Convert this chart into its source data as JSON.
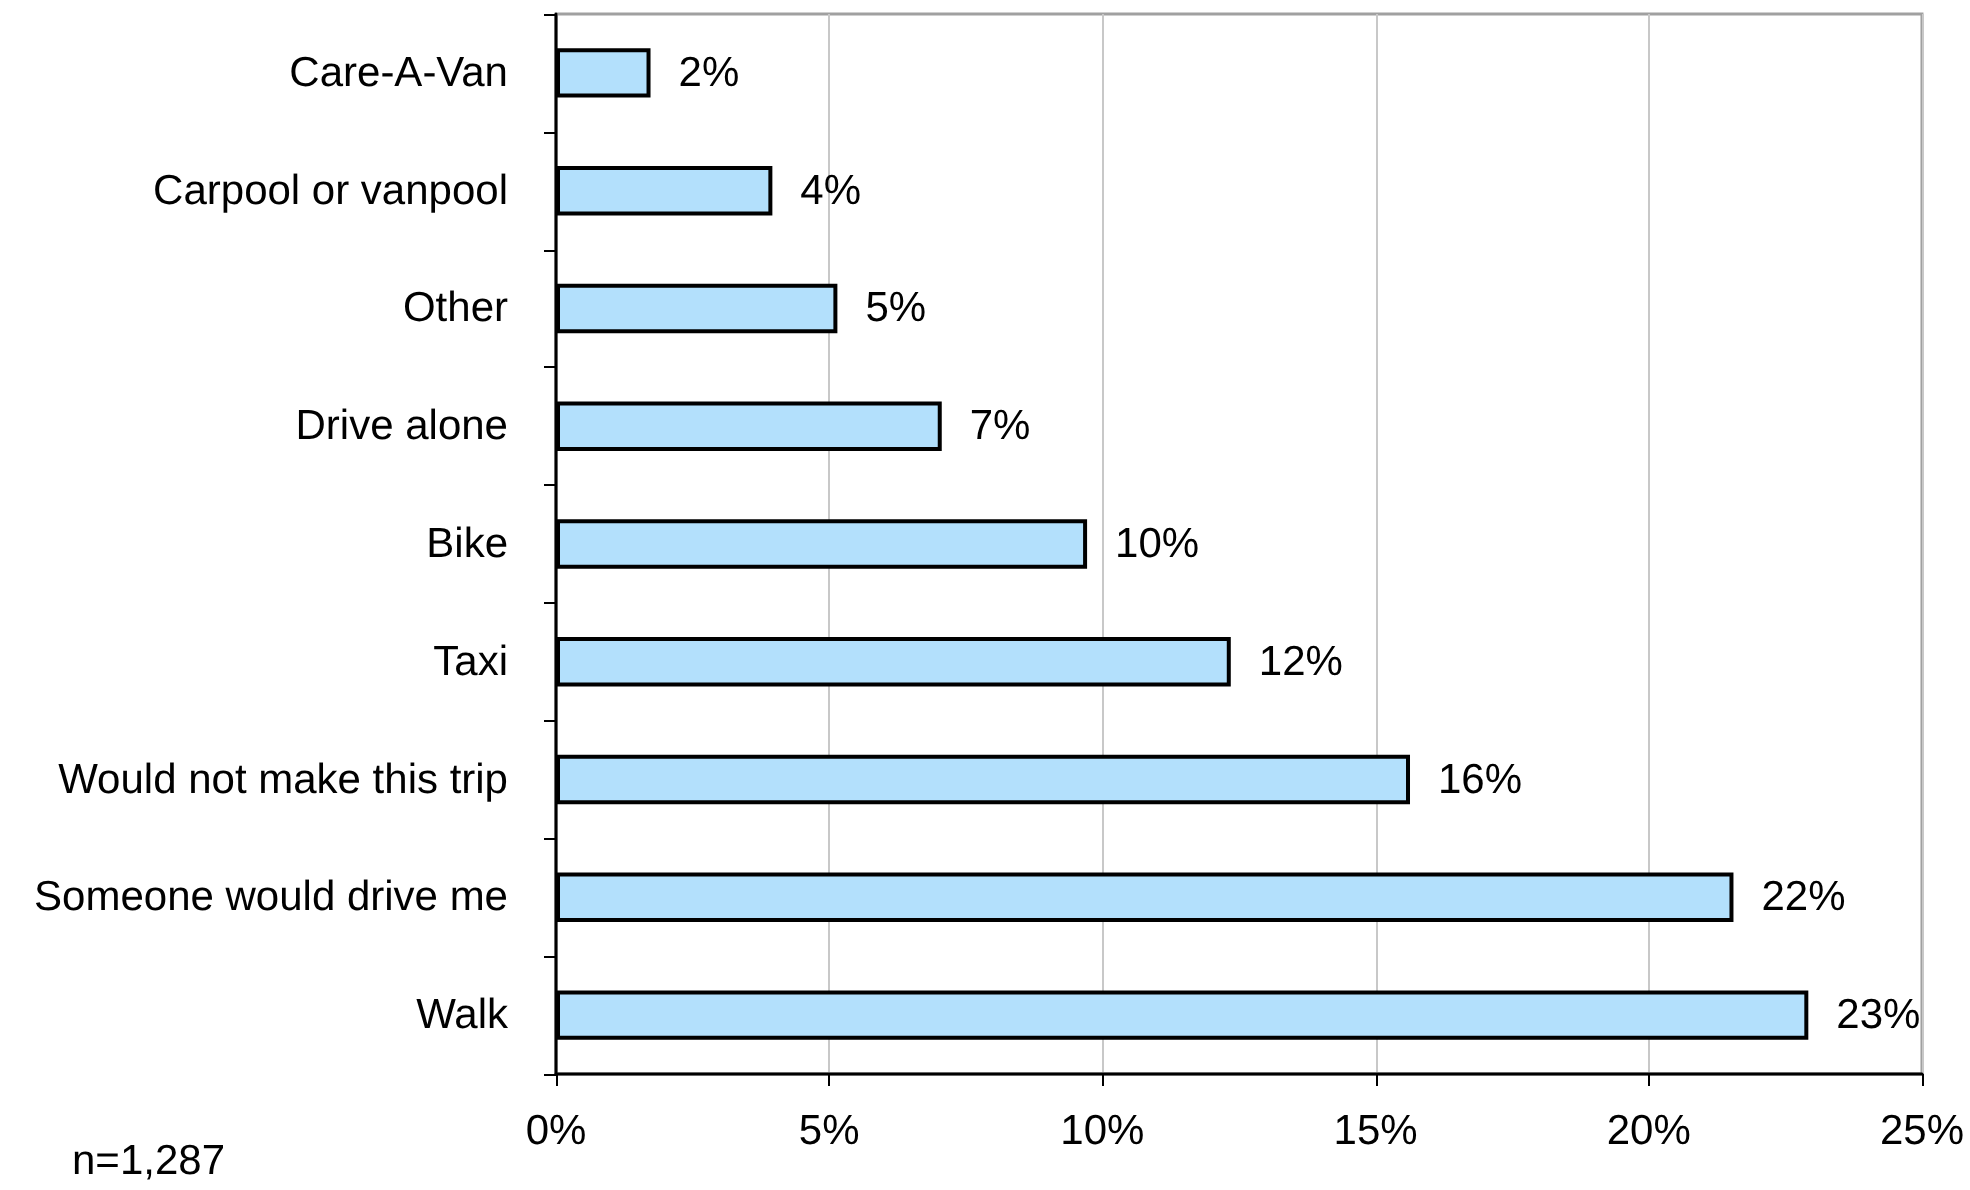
{
  "chart_data": {
    "type": "bar",
    "orientation": "horizontal",
    "categories": [
      "Care-A-Van",
      "Carpool or vanpool",
      "Other",
      "Drive alone",
      "Bike",
      "Taxi",
      "Would not make this trip",
      "Someone would drive me",
      "Walk"
    ],
    "values": [
      1.73,
      3.96,
      5.15,
      7.06,
      9.72,
      12.35,
      15.63,
      21.55,
      22.92
    ],
    "value_labels": [
      "2%",
      "4%",
      "5%",
      "7%",
      "10%",
      "12%",
      "16%",
      "22%",
      "23%"
    ],
    "color": "#b3e0fc",
    "xlim": [
      0,
      25
    ],
    "xticks": [
      {
        "value": 0,
        "label": "0%"
      },
      {
        "value": 5,
        "label": "5%"
      },
      {
        "value": 10,
        "label": "10%"
      },
      {
        "value": 15,
        "label": "15%"
      },
      {
        "value": 20,
        "label": "20%"
      },
      {
        "value": 25,
        "label": "25%"
      }
    ],
    "grid": "x",
    "annotations": [
      "n=1,287"
    ]
  }
}
